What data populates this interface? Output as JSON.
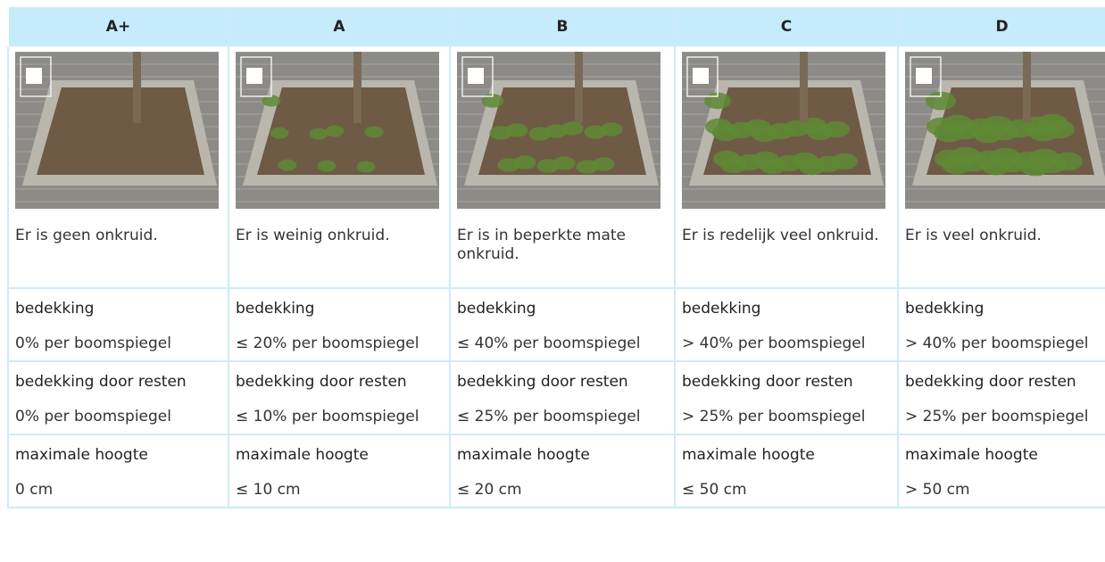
{
  "table": {
    "header": [
      "A+",
      "A",
      "B",
      "C",
      "D"
    ],
    "descriptions": [
      "Er is geen onkruid.",
      "Er is weinig onkruid.",
      "Er is in beperkte mate onkruid.",
      "Er is redelijk veel onkruid.",
      "Er is veel onkruid."
    ],
    "rows": [
      {
        "labels": [
          "bedekking",
          "bedekking",
          "bedekking",
          "bedekking",
          "bedekking"
        ],
        "values": [
          "0% per boomspiegel",
          "≤ 20% per boomspiegel",
          "≤ 40% per boomspiegel",
          "> 40% per boomspiegel",
          "> 40% per boomspiegel"
        ]
      },
      {
        "labels": [
          "bedekking door resten",
          "bedekking door resten",
          "bedekking door resten",
          "bedekking door resten",
          "bedekking door resten"
        ],
        "values": [
          "0% per boomspiegel",
          "≤ 10% per boomspiegel",
          "≤ 25% per boomspiegel",
          "> 25% per boomspiegel",
          "> 25% per boomspiegel"
        ]
      },
      {
        "labels": [
          "maximale hoogte",
          "maximale hoogte",
          "maximale hoogte",
          "maximale hoogte",
          "maximale hoogte"
        ],
        "values": [
          "0 cm",
          "≤ 10 cm",
          "≤ 20 cm",
          "≤ 50 cm",
          "> 50 cm"
        ]
      }
    ]
  }
}
